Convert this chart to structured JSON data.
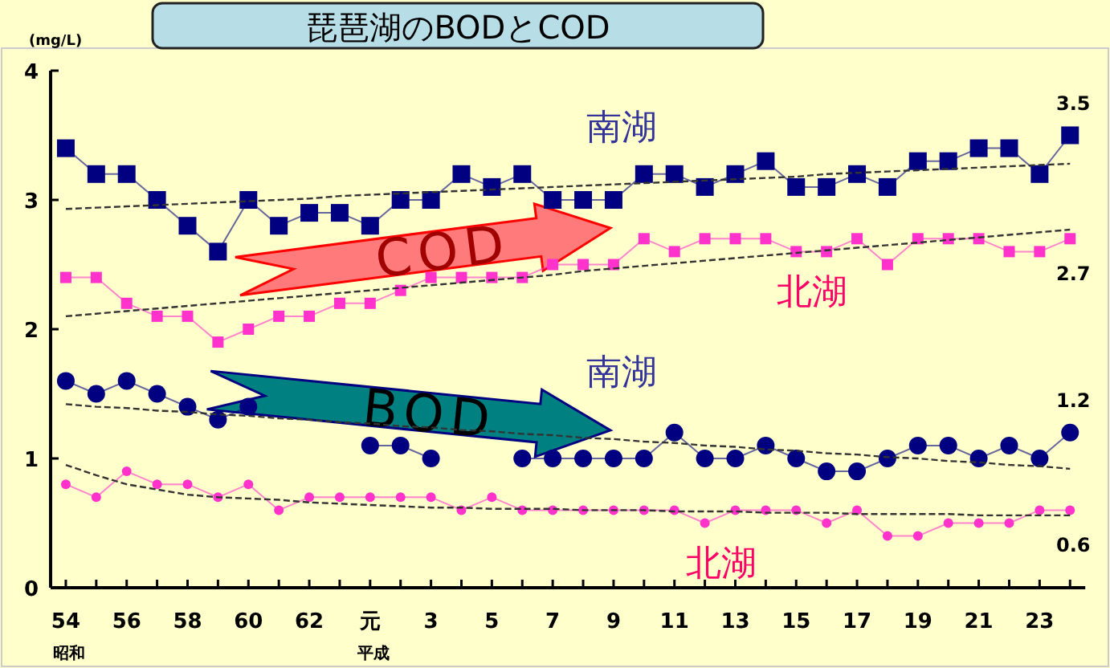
{
  "chart_data": {
    "type": "line",
    "title": "琵琶湖のBODとCOD",
    "ylabel": "(mg/L)",
    "categories": [
      "54",
      null,
      "56",
      null,
      "58",
      null,
      "60",
      null,
      "62",
      null,
      "元",
      null,
      "3",
      null,
      "5",
      null,
      "7",
      null,
      "9",
      null,
      "11",
      null,
      "13",
      null,
      "15",
      null,
      "17",
      null,
      "19",
      null,
      "21",
      null,
      "23",
      null
    ],
    "ylim": [
      0,
      4
    ],
    "yticks": [
      0,
      1,
      2,
      3,
      4
    ],
    "series": [
      {
        "name": "南湖",
        "color": "#000080",
        "marker": "square",
        "values": [
          3.4,
          3.2,
          3.2,
          3.0,
          2.8,
          2.6,
          3.0,
          2.8,
          2.9,
          2.9,
          2.8,
          3.0,
          3.0,
          3.2,
          3.1,
          3.2,
          3.0,
          3.0,
          3.0,
          3.2,
          3.2,
          3.1,
          3.2,
          3.3,
          3.1,
          3.1,
          3.2,
          3.1,
          3.3,
          3.3,
          3.4,
          3.4,
          3.2,
          3.5
        ],
        "value_labels": [
          null,
          null,
          null,
          null,
          null,
          null,
          null,
          null,
          null,
          null,
          null,
          null,
          null,
          null,
          null,
          null,
          null,
          null,
          null,
          null,
          null,
          null,
          null,
          null,
          null,
          null,
          null,
          null,
          null,
          null,
          null,
          null,
          null,
          "3.5"
        ]
      },
      {
        "name": "北湖",
        "color": "#ff33cc",
        "marker": "square",
        "values": [
          2.4,
          2.4,
          2.2,
          2.1,
          2.1,
          1.9,
          2.0,
          2.1,
          2.1,
          2.2,
          2.2,
          2.3,
          2.4,
          2.4,
          2.4,
          2.4,
          2.5,
          2.5,
          2.5,
          2.7,
          2.6,
          2.7,
          2.7,
          2.7,
          2.6,
          2.6,
          2.7,
          2.5,
          2.7,
          2.7,
          2.7,
          2.6,
          2.6,
          2.7
        ],
        "value_labels": [
          null,
          null,
          null,
          null,
          null,
          null,
          null,
          null,
          null,
          null,
          null,
          null,
          null,
          null,
          null,
          null,
          null,
          null,
          null,
          null,
          null,
          null,
          null,
          null,
          null,
          null,
          null,
          null,
          null,
          null,
          null,
          null,
          null,
          "2.7"
        ]
      },
      {
        "name": "南湖",
        "color": "#000080",
        "marker": "circle",
        "values": [
          1.6,
          1.5,
          1.6,
          1.5,
          1.4,
          1.3,
          1.4,
          null,
          null,
          null,
          1.1,
          1.1,
          1.0,
          null,
          null,
          1.0,
          1.0,
          1.0,
          1.0,
          1.0,
          1.2,
          1.0,
          1.0,
          1.1,
          1.0,
          0.9,
          0.9,
          1.0,
          1.1,
          1.1,
          1.0,
          1.1,
          1.0,
          1.2
        ],
        "value_labels": [
          null,
          null,
          null,
          null,
          null,
          null,
          null,
          null,
          null,
          null,
          null,
          null,
          null,
          null,
          null,
          null,
          null,
          null,
          null,
          null,
          null,
          null,
          null,
          null,
          null,
          null,
          null,
          null,
          null,
          null,
          null,
          null,
          null,
          "1.2"
        ]
      },
      {
        "name": "北湖",
        "color": "#ff33cc",
        "marker": "circle",
        "values": [
          0.8,
          0.7,
          0.9,
          0.8,
          0.8,
          0.7,
          0.8,
          0.6,
          0.7,
          0.7,
          0.7,
          0.7,
          0.7,
          0.6,
          0.7,
          0.6,
          0.6,
          0.6,
          0.6,
          0.6,
          0.6,
          0.5,
          0.6,
          0.6,
          0.6,
          0.5,
          0.6,
          0.4,
          0.4,
          0.5,
          0.5,
          0.5,
          0.6,
          0.6
        ],
        "value_labels": [
          null,
          null,
          null,
          null,
          null,
          null,
          null,
          null,
          null,
          null,
          null,
          null,
          null,
          null,
          null,
          null,
          null,
          null,
          null,
          null,
          null,
          null,
          null,
          null,
          null,
          null,
          null,
          null,
          null,
          null,
          null,
          null,
          null,
          "0.6"
        ]
      },
      {
        "color": "#333333",
        "marker": "none",
        "line_style": "dashed",
        "values": [
          2.93,
          2.94,
          2.95,
          2.96,
          2.97,
          2.98,
          2.99,
          3.0,
          3.01,
          3.03,
          3.04,
          3.05,
          3.06,
          3.07,
          3.08,
          3.09,
          3.1,
          3.11,
          3.12,
          3.13,
          3.14,
          3.15,
          3.16,
          3.17,
          3.18,
          3.2,
          3.21,
          3.22,
          3.23,
          3.24,
          3.25,
          3.26,
          3.27,
          3.28
        ]
      },
      {
        "color": "#333333",
        "marker": "none",
        "line_style": "dashed",
        "values": [
          2.1,
          2.12,
          2.14,
          2.16,
          2.18,
          2.2,
          2.22,
          2.24,
          2.26,
          2.28,
          2.3,
          2.32,
          2.34,
          2.36,
          2.38,
          2.4,
          2.42,
          2.45,
          2.47,
          2.49,
          2.51,
          2.53,
          2.55,
          2.57,
          2.59,
          2.61,
          2.63,
          2.65,
          2.67,
          2.69,
          2.71,
          2.73,
          2.75,
          2.77
        ]
      },
      {
        "color": "#333333",
        "marker": "none",
        "line_style": "dashed",
        "values": [
          1.42,
          1.4,
          1.39,
          1.37,
          1.36,
          1.34,
          1.33,
          1.31,
          1.3,
          1.28,
          1.27,
          1.25,
          1.24,
          1.22,
          1.21,
          1.19,
          1.18,
          1.16,
          1.15,
          1.13,
          1.12,
          1.1,
          1.09,
          1.07,
          1.06,
          1.04,
          1.03,
          1.01,
          1.0,
          0.98,
          0.97,
          0.95,
          0.94,
          0.92
        ]
      },
      {
        "color": "#333333",
        "marker": "none",
        "line_style": "dashed",
        "values": [
          0.95,
          0.87,
          0.8,
          0.76,
          0.72,
          0.7,
          0.69,
          0.68,
          0.66,
          0.65,
          0.64,
          0.63,
          0.62,
          0.62,
          0.61,
          0.61,
          0.61,
          0.6,
          0.6,
          0.6,
          0.59,
          0.59,
          0.59,
          0.58,
          0.58,
          0.58,
          0.57,
          0.57,
          0.57,
          0.57,
          0.56,
          0.56,
          0.56,
          0.56
        ]
      }
    ],
    "annotations": [
      "COD",
      "BOD",
      "昭和",
      "平成"
    ]
  }
}
